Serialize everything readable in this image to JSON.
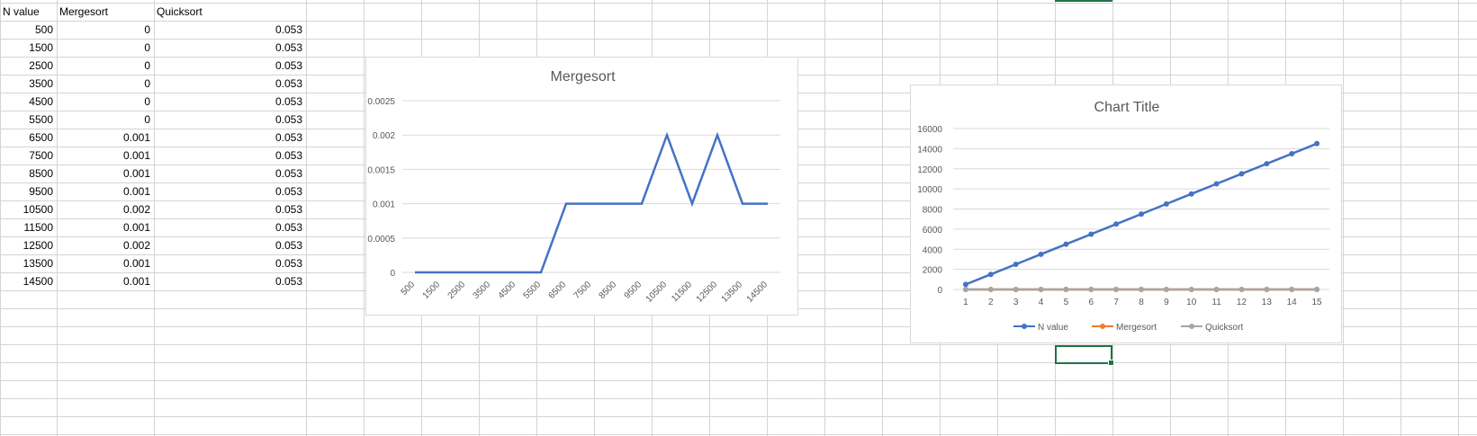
{
  "sheet": {
    "headers": [
      "N value",
      "Mergesort",
      "Quicksort"
    ],
    "rows": [
      [
        "500",
        "0",
        "0.053"
      ],
      [
        "1500",
        "0",
        "0.053"
      ],
      [
        "2500",
        "0",
        "0.053"
      ],
      [
        "3500",
        "0",
        "0.053"
      ],
      [
        "4500",
        "0",
        "0.053"
      ],
      [
        "5500",
        "0",
        "0.053"
      ],
      [
        "6500",
        "0.001",
        "0.053"
      ],
      [
        "7500",
        "0.001",
        "0.053"
      ],
      [
        "8500",
        "0.001",
        "0.053"
      ],
      [
        "9500",
        "0.001",
        "0.053"
      ],
      [
        "10500",
        "0.002",
        "0.053"
      ],
      [
        "11500",
        "0.001",
        "0.053"
      ],
      [
        "12500",
        "0.002",
        "0.053"
      ],
      [
        "13500",
        "0.001",
        "0.053"
      ],
      [
        "14500",
        "0.001",
        "0.053"
      ]
    ]
  },
  "chart_data": [
    {
      "type": "line",
      "title": "Mergesort",
      "categories": [
        "500",
        "1500",
        "2500",
        "3500",
        "4500",
        "5500",
        "6500",
        "7500",
        "8500",
        "9500",
        "10500",
        "11500",
        "12500",
        "13500",
        "14500"
      ],
      "series": [
        {
          "values": [
            0,
            0,
            0,
            0,
            0,
            0,
            0.001,
            0.001,
            0.001,
            0.001,
            0.002,
            0.001,
            0.002,
            0.001,
            0.001
          ],
          "color": "#4472c4"
        }
      ],
      "ylim": [
        0,
        0.0025
      ],
      "yticks": [
        "0",
        "0.0005",
        "0.001",
        "0.0015",
        "0.002",
        "0.0025"
      ],
      "grid": true,
      "legend": "none"
    },
    {
      "type": "line",
      "title": "Chart Title",
      "categories": [
        "1",
        "2",
        "3",
        "4",
        "5",
        "6",
        "7",
        "8",
        "9",
        "10",
        "11",
        "12",
        "13",
        "14",
        "15"
      ],
      "series": [
        {
          "name": "N value",
          "values": [
            500,
            1500,
            2500,
            3500,
            4500,
            5500,
            6500,
            7500,
            8500,
            9500,
            10500,
            11500,
            12500,
            13500,
            14500
          ],
          "color": "#4472c4"
        },
        {
          "name": "Mergesort",
          "values": [
            0,
            0,
            0,
            0,
            0,
            0,
            0.001,
            0.001,
            0.001,
            0.001,
            0.002,
            0.001,
            0.002,
            0.001,
            0.001
          ],
          "color": "#ed7d31"
        },
        {
          "name": "Quicksort",
          "values": [
            0.053,
            0.053,
            0.053,
            0.053,
            0.053,
            0.053,
            0.053,
            0.053,
            0.053,
            0.053,
            0.053,
            0.053,
            0.053,
            0.053,
            0.053
          ],
          "color": "#a5a5a5"
        }
      ],
      "ylim": [
        0,
        16000
      ],
      "yticks": [
        "0",
        "2000",
        "4000",
        "6000",
        "8000",
        "10000",
        "12000",
        "14000",
        "16000"
      ],
      "grid": true,
      "legend": "bottom"
    }
  ]
}
